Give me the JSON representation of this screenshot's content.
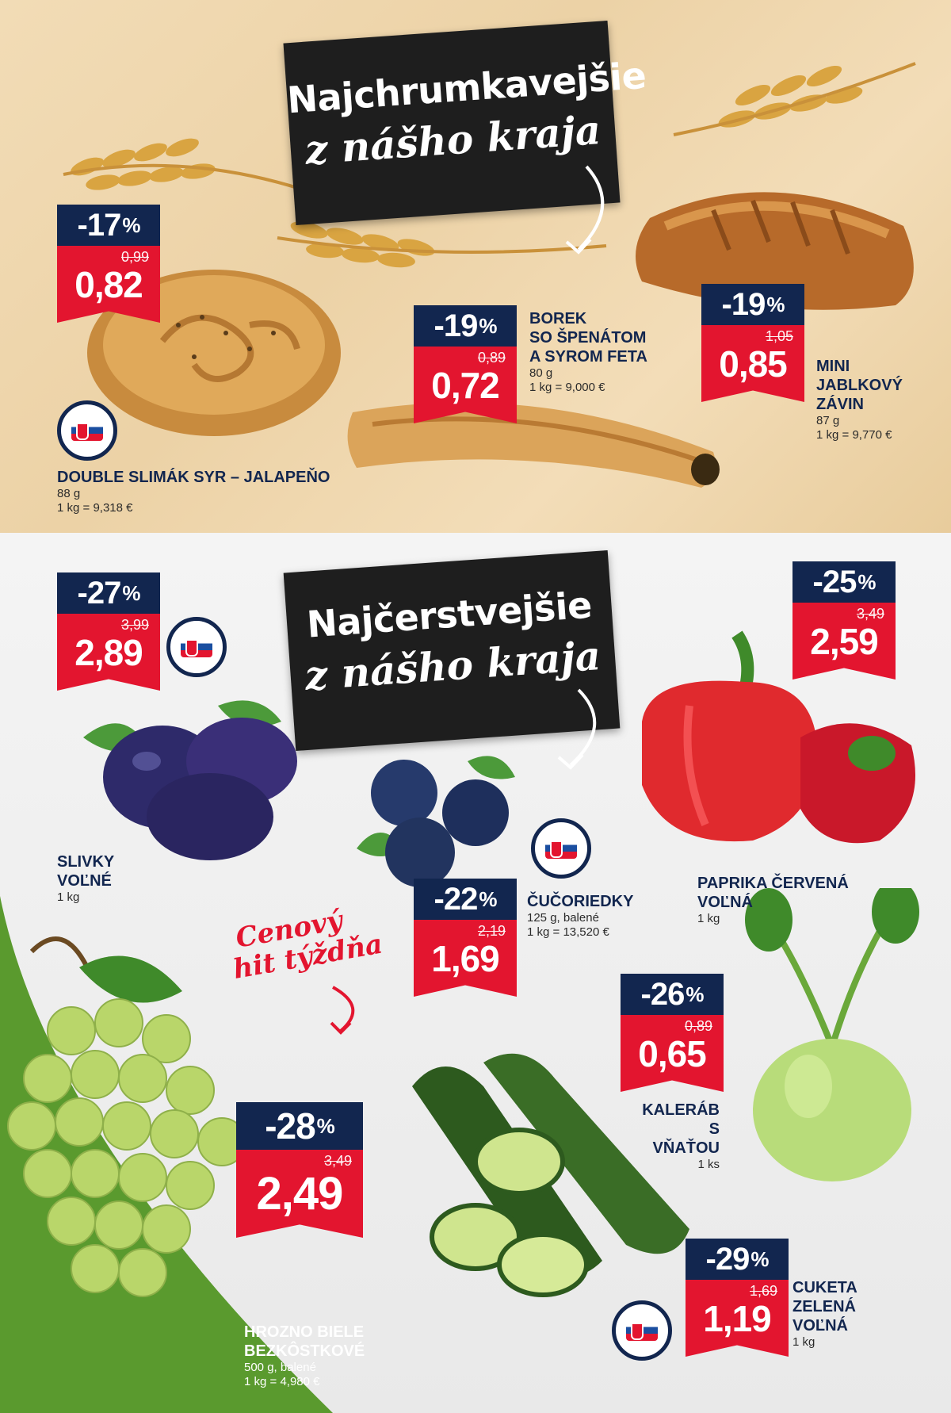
{
  "bakery": {
    "heading_line1": "Najchrumkavejšie",
    "heading_line2": "z nášho kraja",
    "products": [
      {
        "discount": "-17",
        "percent": "%",
        "old_price": "0,99",
        "price": "0,82",
        "name": "DOUBLE SLIMÁK SYR – JALAPEŇO",
        "weight": "88 g",
        "unit_price": "1 kg = 9,318 €"
      },
      {
        "discount": "-19",
        "percent": "%",
        "old_price": "0,89",
        "price": "0,72",
        "name_lines": [
          "BOREK",
          "SO ŠPENÁTOM",
          "A SYROM FETA"
        ],
        "weight": "80 g",
        "unit_price": "1 kg = 9,000 €"
      },
      {
        "discount": "-19",
        "percent": "%",
        "old_price": "1,05",
        "price": "0,85",
        "name_lines": [
          "MINI",
          "JABLKOVÝ",
          "ZÁVIN"
        ],
        "weight": "87 g",
        "unit_price": "1 kg = 9,770 €"
      }
    ]
  },
  "produce": {
    "heading_line1": "Najčerstvejšie",
    "heading_line2": "z nášho kraja",
    "hit_line1": "Cenový",
    "hit_line2": "hit týždňa",
    "products": [
      {
        "discount": "-27",
        "percent": "%",
        "old_price": "3,99",
        "price": "2,89",
        "name_lines": [
          "SLIVKY",
          "VOĽNÉ"
        ],
        "weight": "1 kg"
      },
      {
        "discount": "-25",
        "percent": "%",
        "old_price": "3,49",
        "price": "2,59",
        "name_lines": [
          "PAPRIKA ČERVENÁ",
          "VOĽNÁ"
        ],
        "weight": "1 kg"
      },
      {
        "discount": "-22",
        "percent": "%",
        "old_price": "2,19",
        "price": "1,69",
        "name_lines": [
          "ČUČORIEDKY"
        ],
        "weight": "125 g, balené",
        "unit_price": "1 kg = 13,520 €"
      },
      {
        "discount": "-26",
        "percent": "%",
        "old_price": "0,89",
        "price": "0,65",
        "name_lines": [
          "KALERÁB",
          "S VŇAŤOU"
        ],
        "weight": "1 ks"
      },
      {
        "discount": "-28",
        "percent": "%",
        "old_price": "3,49",
        "price": "2,49",
        "name_lines": [
          "HROZNO BIELE",
          "BEZKÔSTKOVÉ"
        ],
        "weight": "500 g, balené",
        "unit_price": "1 kg = 4,980 €"
      },
      {
        "discount": "-29",
        "percent": "%",
        "old_price": "1,69",
        "price": "1,19",
        "name_lines": [
          "CUKETA",
          "ZELENÁ",
          "VOĽNÁ"
        ],
        "weight": "1 kg"
      }
    ]
  },
  "colors": {
    "navy": "#12264f",
    "red": "#e3152f",
    "green": "#5a9a2e"
  },
  "icons": [
    "slovak-product-logo-icon",
    "wheat-icon",
    "arrow-icon"
  ]
}
